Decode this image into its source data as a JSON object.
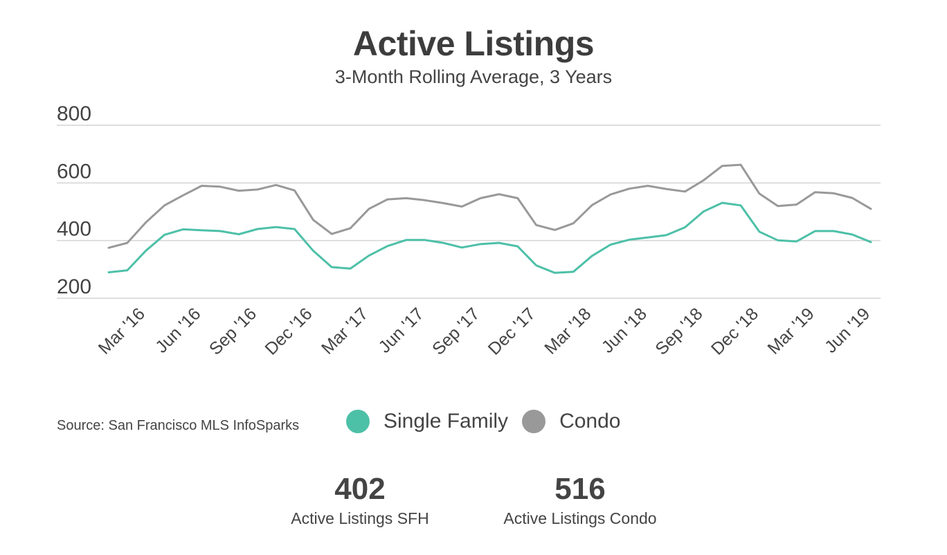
{
  "title": "Active Listings",
  "subtitle": "3-Month Rolling Average, 3 Years",
  "source": "Source:  San Francisco MLS InfoSparks",
  "colors": {
    "single_family": "#4dc0a8",
    "condo": "#999999",
    "grid": "#d4d4d4",
    "text": "#444444"
  },
  "legend": [
    {
      "label": "Single Family",
      "color": "#4dc0a8"
    },
    {
      "label": "Condo",
      "color": "#999999"
    }
  ],
  "stats": [
    {
      "value": "402",
      "label": "Active Listings SFH"
    },
    {
      "value": "516",
      "label": "Active Listings Condo"
    }
  ],
  "chart_data": {
    "type": "line",
    "title": "Active Listings",
    "subtitle": "3-Month Rolling Average, 3 Years",
    "xlabel": "",
    "ylabel": "",
    "ylim": [
      200,
      800
    ],
    "yticks": [
      200,
      400,
      600,
      800
    ],
    "grid": true,
    "legend_position": "bottom",
    "x": [
      "Jan '16",
      "Feb '16",
      "Mar '16",
      "Apr '16",
      "May '16",
      "Jun '16",
      "Jul '16",
      "Aug '16",
      "Sep '16",
      "Oct '16",
      "Nov '16",
      "Dec '16",
      "Jan '17",
      "Feb '17",
      "Mar '17",
      "Apr '17",
      "May '17",
      "Jun '17",
      "Jul '17",
      "Aug '17",
      "Sep '17",
      "Oct '17",
      "Nov '17",
      "Dec '17",
      "Jan '18",
      "Feb '18",
      "Mar '18",
      "Apr '18",
      "May '18",
      "Jun '18",
      "Jul '18",
      "Aug '18",
      "Sep '18",
      "Oct '18",
      "Nov '18",
      "Dec '18",
      "Jan '19",
      "Feb '19",
      "Mar '19",
      "Apr '19",
      "May '19",
      "Jun '19"
    ],
    "x_tick_labels": [
      "Mar '16",
      "Jun '16",
      "Sep '16",
      "Dec '16",
      "Mar '17",
      "Jun '17",
      "Sep '17",
      "Dec '17",
      "Mar '18",
      "Jun '18",
      "Sep '18",
      "Dec '18",
      "Mar '19",
      "Jun '19"
    ],
    "x_tick_indices": [
      2,
      5,
      8,
      11,
      14,
      17,
      20,
      23,
      26,
      29,
      32,
      35,
      38,
      41
    ],
    "series": [
      {
        "name": "Single Family",
        "color": "#4dc0a8",
        "values": [
          290,
          297,
          365,
          420,
          439,
          436,
          433,
          422,
          440,
          447,
          440,
          365,
          308,
          303,
          348,
          381,
          402,
          402,
          392,
          376,
          388,
          392,
          380,
          314,
          288,
          292,
          347,
          386,
          403,
          411,
          419,
          446,
          501,
          531,
          522,
          431,
          401,
          397,
          433,
          433,
          421,
          395
        ]
      },
      {
        "name": "Condo",
        "color": "#999999",
        "values": [
          375,
          392,
          463,
          522,
          557,
          590,
          587,
          573,
          577,
          593,
          574,
          472,
          423,
          443,
          510,
          543,
          547,
          540,
          530,
          518,
          547,
          561,
          547,
          454,
          437,
          460,
          523,
          560,
          580,
          590,
          579,
          570,
          609,
          659,
          663,
          563,
          520,
          525,
          568,
          564,
          548,
          510
        ]
      }
    ]
  }
}
